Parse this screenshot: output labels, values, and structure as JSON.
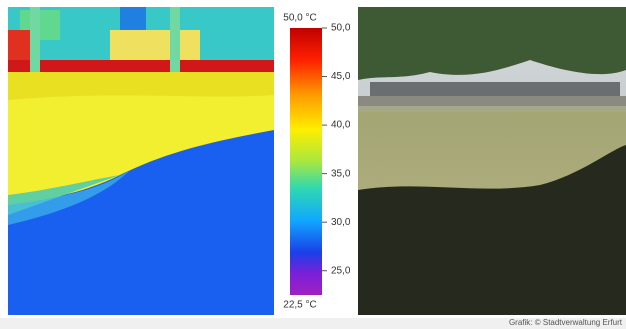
{
  "colorbar": {
    "max_label": "50,0 °C",
    "min_label": "22,5 °C",
    "range": [
      22.5,
      50
    ],
    "ticks": [
      {
        "value": 50,
        "label": "50,0"
      },
      {
        "value": 45,
        "label": "45,0"
      },
      {
        "value": 40,
        "label": "40,0"
      },
      {
        "value": 35,
        "label": "35,0"
      },
      {
        "value": 30,
        "label": "30,0"
      },
      {
        "value": 25,
        "label": "25,0"
      }
    ]
  },
  "credit": "Grafik: © Stadtverwaltung Erfurt"
}
